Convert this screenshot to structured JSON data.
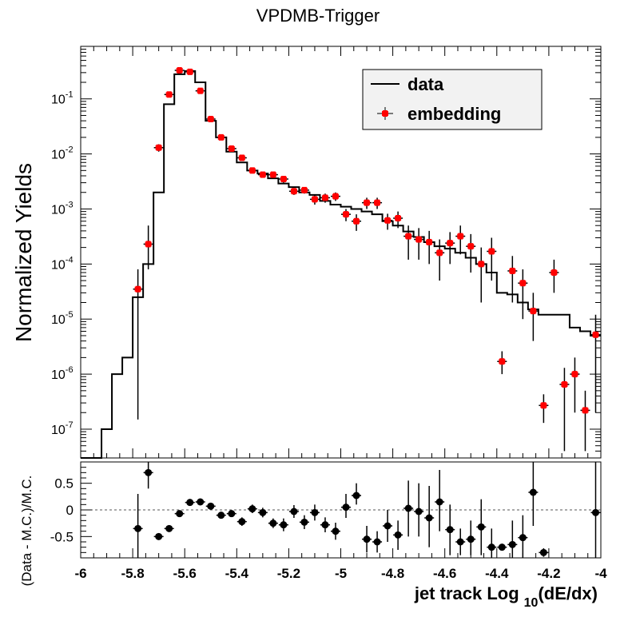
{
  "title": "VPDMB-Trigger",
  "chart_data": [
    {
      "type": "line",
      "title": "VPDMB-Trigger",
      "xlabel": "",
      "ylabel": "Normalized Yields",
      "y_scale": "log",
      "xlim": [
        -6,
        -4
      ],
      "ylim": [
        3e-08,
        0.9
      ],
      "y_ticks": [
        "10^-7",
        "10^-6",
        "10^-5",
        "10^-4",
        "10^-3",
        "10^-2",
        "10^-1"
      ],
      "legend": {
        "placement": "top-right",
        "entries": [
          {
            "label": "data",
            "style": "line",
            "color": "#000000"
          },
          {
            "label": "embedding",
            "style": "marker",
            "color": "#ff0000"
          }
        ]
      },
      "series": [
        {
          "name": "data",
          "style": "step",
          "color": "#000000",
          "bin_width": 0.04,
          "x": [
            -6.0,
            -5.96,
            -5.92,
            -5.88,
            -5.84,
            -5.8,
            -5.76,
            -5.72,
            -5.68,
            -5.64,
            -5.6,
            -5.56,
            -5.52,
            -5.48,
            -5.44,
            -5.4,
            -5.36,
            -5.32,
            -5.28,
            -5.24,
            -5.2,
            -5.16,
            -5.12,
            -5.08,
            -5.04,
            -5.0,
            -4.96,
            -4.92,
            -4.88,
            -4.84,
            -4.8,
            -4.76,
            -4.72,
            -4.68,
            -4.64,
            -4.6,
            -4.56,
            -4.52,
            -4.48,
            -4.44,
            -4.4,
            -4.36,
            -4.32,
            -4.28,
            -4.24,
            -4.2,
            -4.16,
            -4.12,
            -4.08,
            -4.04
          ],
          "y": [
            3e-08,
            3e-08,
            1e-07,
            1e-06,
            2e-06,
            2.5e-05,
            0.0001,
            0.002,
            0.08,
            0.28,
            0.32,
            0.2,
            0.04,
            0.02,
            0.011,
            0.007,
            0.005,
            0.0044,
            0.0036,
            0.0029,
            0.0025,
            0.002,
            0.0018,
            0.0014,
            0.0012,
            0.0011,
            0.001,
            0.0009,
            0.0008,
            0.0006,
            0.0005,
            0.00039,
            0.00031,
            0.00025,
            0.00021,
            0.00019,
            0.00016,
            0.00013,
            0.0001,
            7e-05,
            3e-05,
            2.8e-05,
            2e-05,
            1.5e-05,
            1.2e-05,
            1.2e-05,
            1.2e-05,
            7e-06,
            6e-06,
            5e-06
          ]
        },
        {
          "name": "embedding",
          "style": "points",
          "color": "#ff0000",
          "points": [
            {
              "x": -5.78,
              "y": 3.5e-05,
              "lo": 1.5e-07,
              "hi": 8e-05
            },
            {
              "x": -5.74,
              "y": 0.00023,
              "lo": 8e-05,
              "hi": 0.0005
            },
            {
              "x": -5.7,
              "y": 0.013,
              "lo": 0.011,
              "hi": 0.015
            },
            {
              "x": -5.66,
              "y": 0.12,
              "lo": 0.11,
              "hi": 0.13
            },
            {
              "x": -5.62,
              "y": 0.33,
              "lo": 0.31,
              "hi": 0.35
            },
            {
              "x": -5.58,
              "y": 0.31,
              "lo": 0.29,
              "hi": 0.33
            },
            {
              "x": -5.54,
              "y": 0.14,
              "lo": 0.13,
              "hi": 0.15
            },
            {
              "x": -5.5,
              "y": 0.043,
              "lo": 0.04,
              "hi": 0.046
            },
            {
              "x": -5.46,
              "y": 0.02,
              "lo": 0.018,
              "hi": 0.022
            },
            {
              "x": -5.42,
              "y": 0.0125,
              "lo": 0.0115,
              "hi": 0.0135
            },
            {
              "x": -5.38,
              "y": 0.0085,
              "lo": 0.0078,
              "hi": 0.0092
            },
            {
              "x": -5.34,
              "y": 0.005,
              "lo": 0.0045,
              "hi": 0.0055
            },
            {
              "x": -5.3,
              "y": 0.0042,
              "lo": 0.0037,
              "hi": 0.0047
            },
            {
              "x": -5.26,
              "y": 0.0042,
              "lo": 0.0037,
              "hi": 0.0047
            },
            {
              "x": -5.22,
              "y": 0.0035,
              "lo": 0.003,
              "hi": 0.004
            },
            {
              "x": -5.18,
              "y": 0.0021,
              "lo": 0.0018,
              "hi": 0.0024
            },
            {
              "x": -5.14,
              "y": 0.0022,
              "lo": 0.0019,
              "hi": 0.0025
            },
            {
              "x": -5.1,
              "y": 0.0015,
              "lo": 0.0012,
              "hi": 0.0018
            },
            {
              "x": -5.06,
              "y": 0.0016,
              "lo": 0.0013,
              "hi": 0.0019
            },
            {
              "x": -5.02,
              "y": 0.0017,
              "lo": 0.0014,
              "hi": 0.002
            },
            {
              "x": -4.98,
              "y": 0.0008,
              "lo": 0.0006,
              "hi": 0.001
            },
            {
              "x": -4.94,
              "y": 0.0006,
              "lo": 0.0004,
              "hi": 0.0008
            },
            {
              "x": -4.9,
              "y": 0.0013,
              "lo": 0.001,
              "hi": 0.0016
            },
            {
              "x": -4.86,
              "y": 0.0013,
              "lo": 0.001,
              "hi": 0.0016
            },
            {
              "x": -4.82,
              "y": 0.00062,
              "lo": 0.00042,
              "hi": 0.00082
            },
            {
              "x": -4.78,
              "y": 0.00068,
              "lo": 0.00045,
              "hi": 0.0009
            },
            {
              "x": -4.74,
              "y": 0.00032,
              "lo": 0.00012,
              "hi": 0.0005
            },
            {
              "x": -4.7,
              "y": 0.00028,
              "lo": 0.00012,
              "hi": 0.00045
            },
            {
              "x": -4.66,
              "y": 0.00025,
              "lo": 0.0001,
              "hi": 0.0004
            },
            {
              "x": -4.62,
              "y": 0.00016,
              "lo": 5e-05,
              "hi": 0.00028
            },
            {
              "x": -4.58,
              "y": 0.00024,
              "lo": 0.0001,
              "hi": 0.00038
            },
            {
              "x": -4.54,
              "y": 0.00032,
              "lo": 0.00015,
              "hi": 0.0005
            },
            {
              "x": -4.5,
              "y": 0.00021,
              "lo": 7e-05,
              "hi": 0.00035
            },
            {
              "x": -4.46,
              "y": 0.0001,
              "lo": 2e-05,
              "hi": 0.0002
            },
            {
              "x": -4.42,
              "y": 0.00017,
              "lo": 5e-05,
              "hi": 0.0003
            },
            {
              "x": -4.38,
              "y": 1.7e-06,
              "lo": 1e-06,
              "hi": 2.6e-06
            },
            {
              "x": -4.34,
              "y": 7.5e-05,
              "lo": 2e-05,
              "hi": 0.00014
            },
            {
              "x": -4.3,
              "y": 4.5e-05,
              "lo": 1e-05,
              "hi": 8e-05
            },
            {
              "x": -4.26,
              "y": 1.4e-05,
              "lo": 4e-06,
              "hi": 3e-05
            },
            {
              "x": -4.22,
              "y": 2.7e-07,
              "lo": 1.3e-07,
              "hi": 4.3e-07
            },
            {
              "x": -4.18,
              "y": 7e-05,
              "lo": 3e-05,
              "hi": 0.00012
            },
            {
              "x": -4.14,
              "y": 6.5e-07,
              "lo": 4e-08,
              "hi": 1.3e-06
            },
            {
              "x": -4.1,
              "y": 1e-06,
              "lo": 2e-07,
              "hi": 2e-06
            },
            {
              "x": -4.06,
              "y": 2.2e-07,
              "lo": 4e-08,
              "hi": 5e-07
            },
            {
              "x": -4.02,
              "y": 5.2e-06,
              "lo": 2e-07,
              "hi": 1.2e-05
            }
          ]
        }
      ]
    },
    {
      "type": "scatter",
      "xlabel": "jet track Log",
      "xlabel_subscript": "10",
      "xlabel_suffix": "(dE/dx)",
      "ylabel": "(Data - M.C.)/M.C.",
      "xlim": [
        -6,
        -4
      ],
      "ylim": [
        -0.9,
        0.9
      ],
      "x_ticks": [
        "-6",
        "-5.8",
        "-5.6",
        "-5.4",
        "-5.2",
        "-5",
        "-4.8",
        "-4.6",
        "-4.4",
        "-4.2",
        "-4"
      ],
      "y_ticks": [
        "-0.5",
        "0",
        "0.5"
      ],
      "reference_line": 0,
      "series": [
        {
          "name": "",
          "color": "#000000",
          "points": [
            {
              "x": -5.78,
              "y": -0.35,
              "lo": -0.9,
              "hi": 0.3
            },
            {
              "x": -5.74,
              "y": 0.7,
              "lo": 0.4,
              "hi": 0.9
            },
            {
              "x": -5.7,
              "y": -0.5,
              "lo": -0.55,
              "hi": -0.45
            },
            {
              "x": -5.66,
              "y": -0.35,
              "lo": -0.39,
              "hi": -0.31
            },
            {
              "x": -5.62,
              "y": -0.07,
              "lo": -0.09,
              "hi": -0.05
            },
            {
              "x": -5.58,
              "y": 0.14,
              "lo": 0.12,
              "hi": 0.16
            },
            {
              "x": -5.54,
              "y": 0.15,
              "lo": 0.13,
              "hi": 0.17
            },
            {
              "x": -5.5,
              "y": 0.07,
              "lo": 0.05,
              "hi": 0.09
            },
            {
              "x": -5.46,
              "y": -0.1,
              "lo": -0.12,
              "hi": -0.08
            },
            {
              "x": -5.42,
              "y": -0.07,
              "lo": -0.1,
              "hi": -0.04
            },
            {
              "x": -5.38,
              "y": -0.22,
              "lo": -0.3,
              "hi": -0.14
            },
            {
              "x": -5.34,
              "y": 0.02,
              "lo": -0.06,
              "hi": 0.1
            },
            {
              "x": -5.3,
              "y": -0.05,
              "lo": -0.14,
              "hi": 0.04
            },
            {
              "x": -5.26,
              "y": -0.25,
              "lo": -0.34,
              "hi": -0.16
            },
            {
              "x": -5.22,
              "y": -0.28,
              "lo": -0.4,
              "hi": -0.16
            },
            {
              "x": -5.18,
              "y": -0.03,
              "lo": -0.15,
              "hi": 0.09
            },
            {
              "x": -5.14,
              "y": -0.23,
              "lo": -0.36,
              "hi": -0.1
            },
            {
              "x": -5.1,
              "y": -0.05,
              "lo": -0.2,
              "hi": 0.1
            },
            {
              "x": -5.06,
              "y": -0.28,
              "lo": -0.42,
              "hi": -0.14
            },
            {
              "x": -5.02,
              "y": -0.4,
              "lo": -0.56,
              "hi": -0.24
            },
            {
              "x": -4.98,
              "y": 0.05,
              "lo": -0.15,
              "hi": 0.3
            },
            {
              "x": -4.94,
              "y": 0.27,
              "lo": 0.1,
              "hi": 0.5
            },
            {
              "x": -4.9,
              "y": -0.55,
              "lo": -0.8,
              "hi": -0.3
            },
            {
              "x": -4.86,
              "y": -0.6,
              "lo": -0.8,
              "hi": -0.4
            },
            {
              "x": -4.82,
              "y": -0.3,
              "lo": -0.6,
              "hi": 0.0
            },
            {
              "x": -4.78,
              "y": -0.47,
              "lo": -0.75,
              "hi": -0.2
            },
            {
              "x": -4.74,
              "y": 0.03,
              "lo": -0.5,
              "hi": 0.55
            },
            {
              "x": -4.7,
              "y": -0.03,
              "lo": -0.5,
              "hi": 0.5
            },
            {
              "x": -4.66,
              "y": -0.15,
              "lo": -0.7,
              "hi": 0.45
            },
            {
              "x": -4.62,
              "y": 0.15,
              "lo": -0.4,
              "hi": 0.75
            },
            {
              "x": -4.58,
              "y": -0.37,
              "lo": -0.85,
              "hi": 0.1
            },
            {
              "x": -4.54,
              "y": -0.6,
              "lo": -0.85,
              "hi": -0.35
            },
            {
              "x": -4.5,
              "y": -0.55,
              "lo": -0.85,
              "hi": -0.2
            },
            {
              "x": -4.46,
              "y": -0.32,
              "lo": -0.85,
              "hi": 0.2
            },
            {
              "x": -4.42,
              "y": -0.7,
              "lo": -0.9,
              "hi": -0.35
            },
            {
              "x": -4.38,
              "y": -0.7,
              "lo": -0.75,
              "hi": -0.65
            },
            {
              "x": -4.34,
              "y": -0.65,
              "lo": -0.9,
              "hi": -0.2
            },
            {
              "x": -4.3,
              "y": -0.52,
              "lo": -0.9,
              "hi": -0.1
            },
            {
              "x": -4.26,
              "y": 0.33,
              "lo": -0.3,
              "hi": 0.9
            },
            {
              "x": -4.22,
              "y": -0.8,
              "lo": -0.88,
              "hi": -0.72
            },
            {
              "x": -4.02,
              "y": -0.05,
              "lo": -0.9,
              "hi": 0.9
            }
          ]
        }
      ]
    }
  ]
}
